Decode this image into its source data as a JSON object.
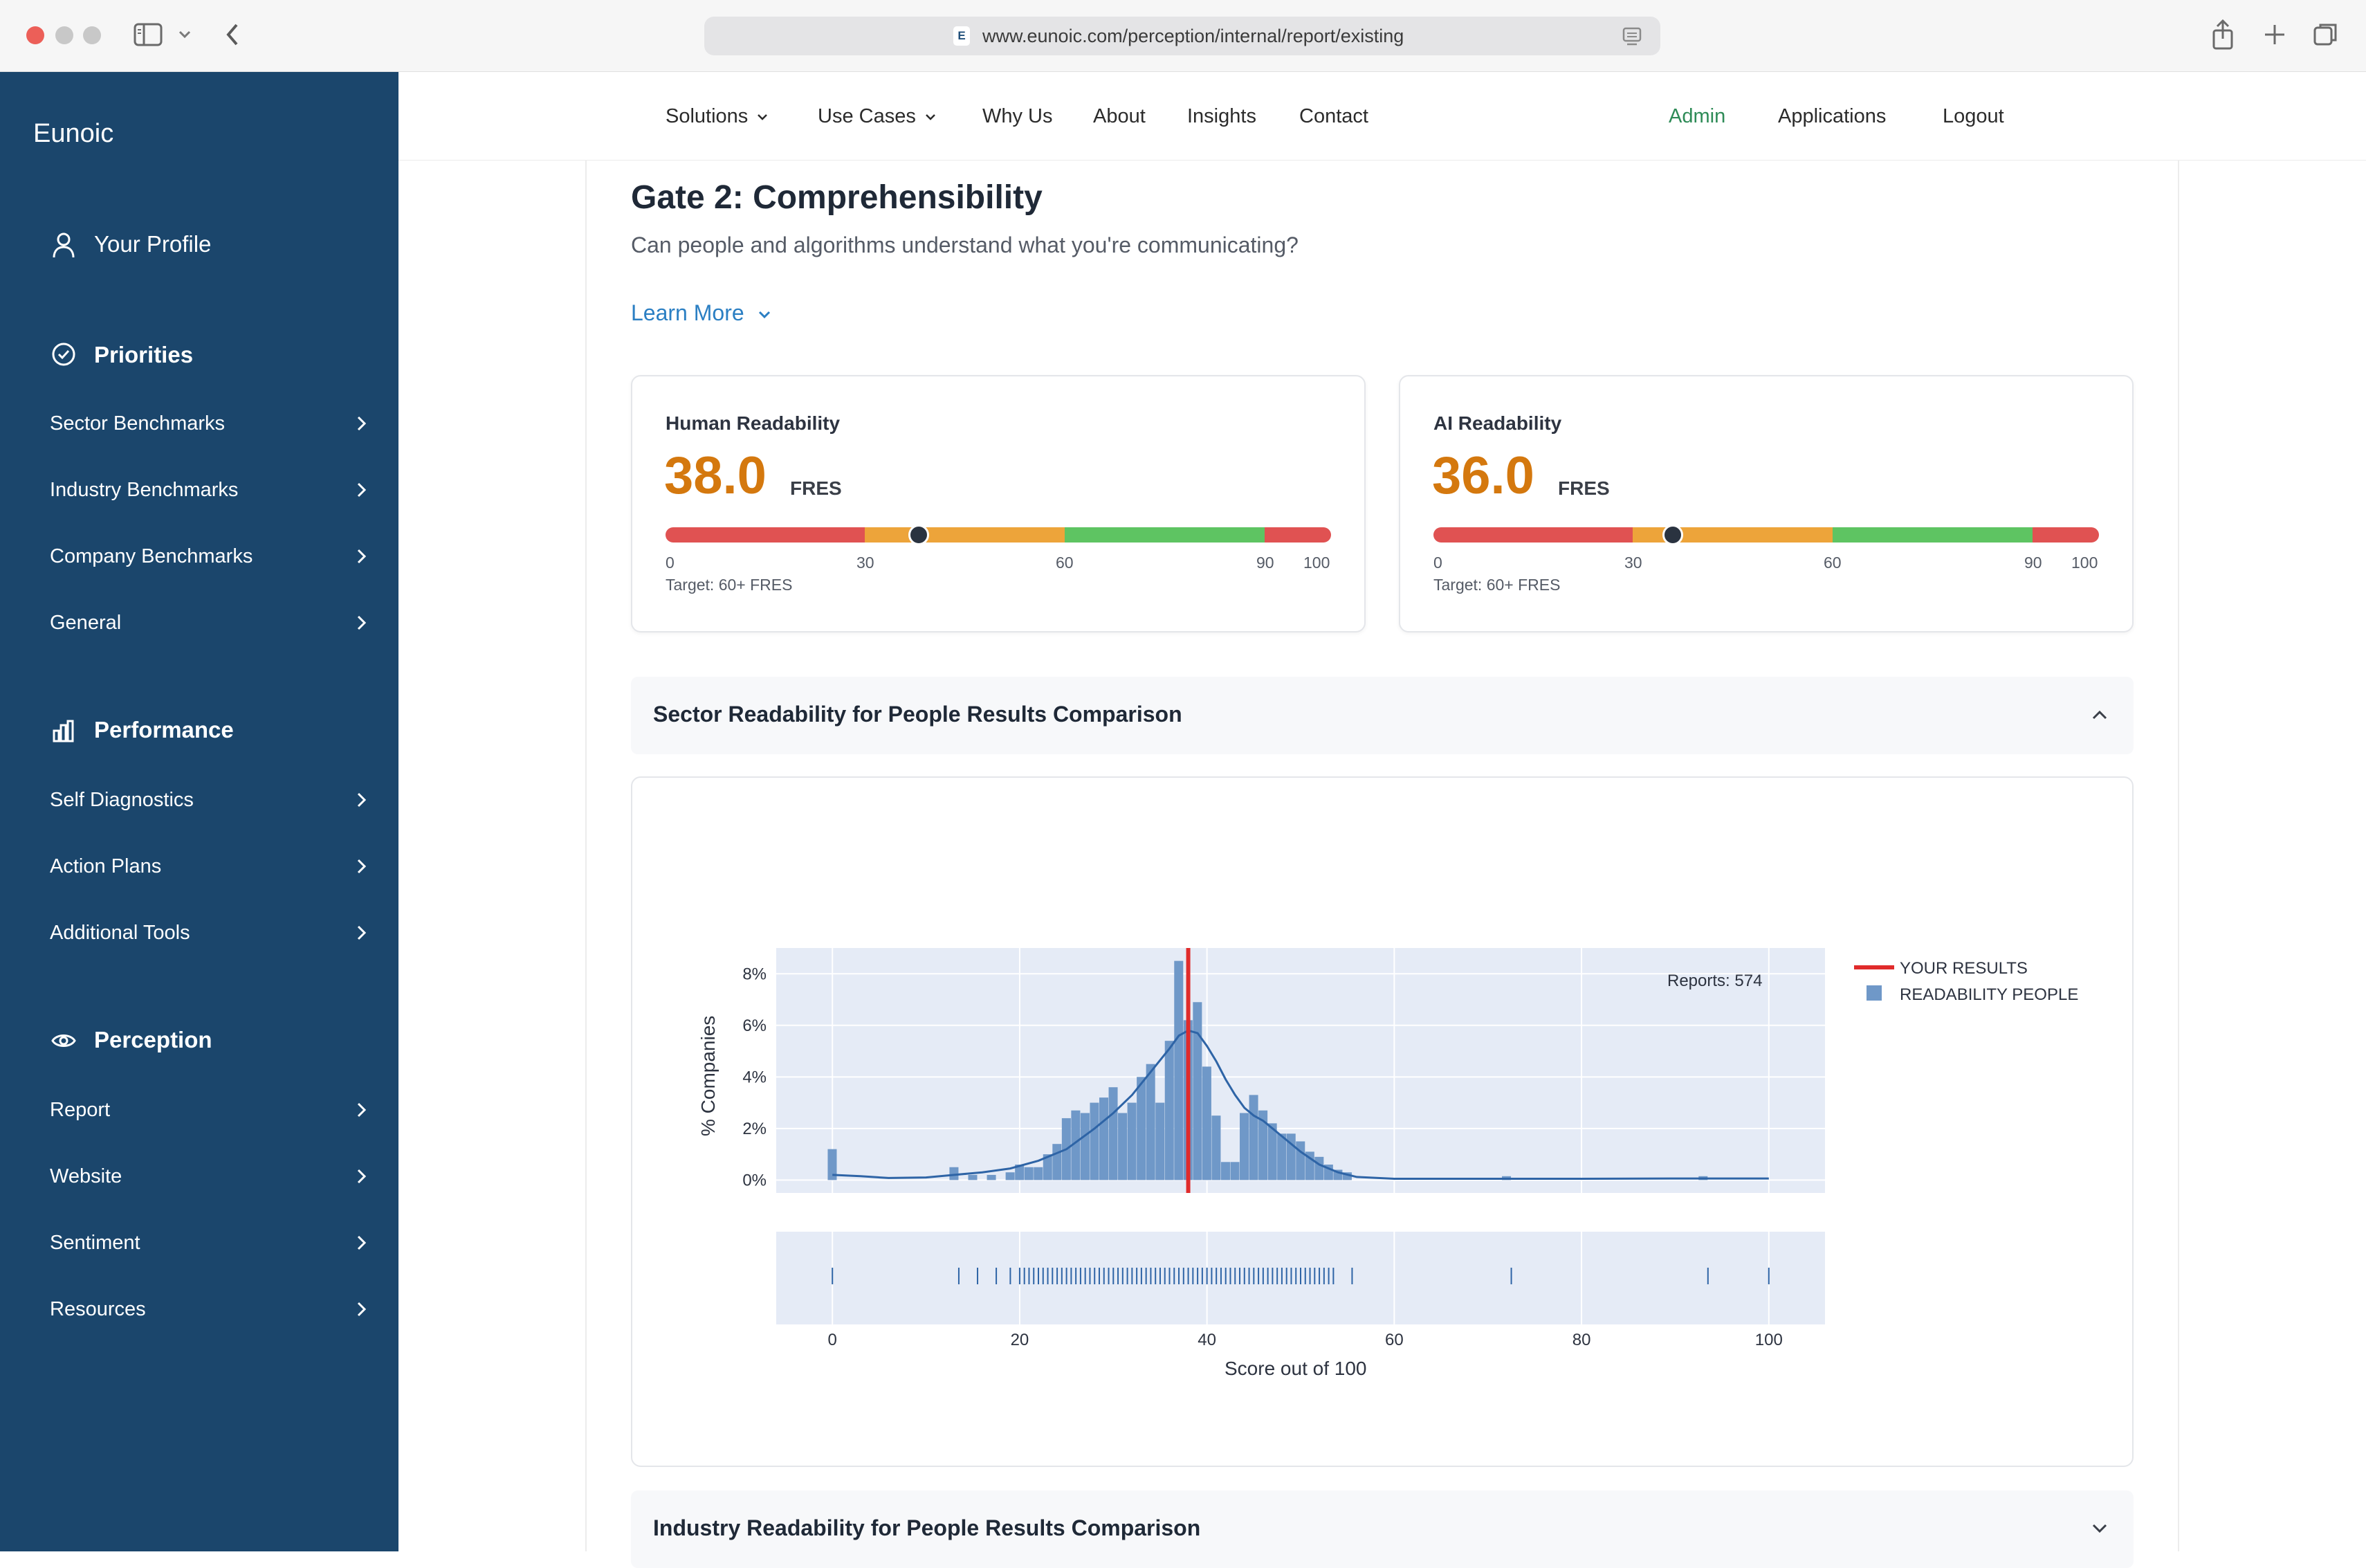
{
  "browser": {
    "url": "www.eunoic.com/perception/internal/report/existing",
    "favicon_letter": "E"
  },
  "brand": "Eunoic",
  "sidebar": {
    "profile_label": "Your Profile",
    "sections": [
      {
        "title": "Priorities",
        "icon": "check-circle-icon",
        "items": [
          "Sector Benchmarks",
          "Industry Benchmarks",
          "Company Benchmarks",
          "General"
        ]
      },
      {
        "title": "Performance",
        "icon": "bar-chart-icon",
        "items": [
          "Self Diagnostics",
          "Action Plans",
          "Additional Tools"
        ]
      },
      {
        "title": "Perception",
        "icon": "eye-icon",
        "items": [
          "Report",
          "Website",
          "Sentiment",
          "Resources"
        ]
      }
    ]
  },
  "nav": {
    "links": [
      "Solutions",
      "Use Cases",
      "Why Us",
      "About",
      "Insights",
      "Contact"
    ],
    "admin": "Admin",
    "applications": "Applications",
    "logout": "Logout"
  },
  "gate": {
    "title": "Gate 2: Comprehensibility",
    "subtitle": "Can people and algorithms understand what you're communicating?",
    "learn_more": "Learn More"
  },
  "cards": [
    {
      "title": "Human Readability",
      "score": "38.0",
      "unit": "FRES",
      "value": 38,
      "target": "Target: 60+ FRES"
    },
    {
      "title": "AI Readability",
      "score": "36.0",
      "unit": "FRES",
      "value": 36,
      "target": "Target: 60+ FRES"
    }
  ],
  "gauge": {
    "ticks": [
      "0",
      "30",
      "60",
      "90",
      "100"
    ],
    "colors": {
      "poor": "#e05252",
      "fair": "#eda43a",
      "good": "#5ec462"
    }
  },
  "accordions": {
    "sector": "Sector Readability for People Results Comparison",
    "industry": "Industry Readability for People Results Comparison"
  },
  "chart_data": {
    "type": "bar",
    "ylabel": "% Companies",
    "xlabel": "Score out of 100",
    "yticks": [
      "0%",
      "2%",
      "4%",
      "6%",
      "8%"
    ],
    "xticks": [
      "0",
      "20",
      "40",
      "60",
      "80",
      "100"
    ],
    "xlim": [
      -6,
      106
    ],
    "ylim": [
      -0.5,
      9.0
    ],
    "annotation": "Reports: 574",
    "your_result": 38,
    "legend": [
      "YOUR RESULTS",
      "READABILITY PEOPLE"
    ],
    "colors": {
      "bars": "#6f98c8",
      "line": "#2e64a6",
      "marker": "#e02b2b",
      "plot_bg": "#e5ebf6"
    },
    "bins": [
      [
        0,
        1.2
      ],
      [
        13,
        0.5
      ],
      [
        15,
        0.2
      ],
      [
        17,
        0.2
      ],
      [
        19,
        0.3
      ],
      [
        20,
        0.6
      ],
      [
        21,
        0.5
      ],
      [
        22,
        0.5
      ],
      [
        23,
        1.0
      ],
      [
        24,
        1.4
      ],
      [
        25,
        2.4
      ],
      [
        26,
        2.7
      ],
      [
        27,
        2.6
      ],
      [
        28,
        3.0
      ],
      [
        29,
        3.2
      ],
      [
        30,
        3.6
      ],
      [
        31,
        2.6
      ],
      [
        32,
        3.0
      ],
      [
        33,
        4.0
      ],
      [
        34,
        4.5
      ],
      [
        35,
        3.0
      ],
      [
        36,
        5.4
      ],
      [
        37,
        8.5
      ],
      [
        38,
        6.2
      ],
      [
        39,
        6.9
      ],
      [
        40,
        4.4
      ],
      [
        41,
        2.5
      ],
      [
        42,
        0.7
      ],
      [
        43,
        0.7
      ],
      [
        44,
        2.6
      ],
      [
        45,
        3.3
      ],
      [
        46,
        2.7
      ],
      [
        47,
        2.2
      ],
      [
        48,
        1.8
      ],
      [
        49,
        1.8
      ],
      [
        50,
        1.5
      ],
      [
        51,
        1.1
      ],
      [
        52,
        0.9
      ],
      [
        53,
        0.6
      ],
      [
        54,
        0.4
      ],
      [
        55,
        0.3
      ],
      [
        72,
        0.15
      ],
      [
        93,
        0.15
      ]
    ],
    "kde": [
      [
        0,
        0.2
      ],
      [
        3,
        0.15
      ],
      [
        6,
        0.08
      ],
      [
        10,
        0.1
      ],
      [
        13,
        0.2
      ],
      [
        16,
        0.3
      ],
      [
        19,
        0.45
      ],
      [
        22,
        0.75
      ],
      [
        25,
        1.2
      ],
      [
        28,
        2.0
      ],
      [
        30,
        2.6
      ],
      [
        32,
        3.3
      ],
      [
        34,
        4.2
      ],
      [
        36,
        5.1
      ],
      [
        37,
        5.6
      ],
      [
        38,
        5.8
      ],
      [
        39,
        5.7
      ],
      [
        40,
        5.2
      ],
      [
        41,
        4.6
      ],
      [
        42,
        3.9
      ],
      [
        43,
        3.3
      ],
      [
        44,
        2.8
      ],
      [
        45,
        2.5
      ],
      [
        46,
        2.3
      ],
      [
        47,
        2.0
      ],
      [
        48,
        1.7
      ],
      [
        50,
        1.1
      ],
      [
        52,
        0.6
      ],
      [
        54,
        0.3
      ],
      [
        56,
        0.12
      ],
      [
        60,
        0.05
      ],
      [
        70,
        0.05
      ],
      [
        80,
        0.05
      ],
      [
        90,
        0.06
      ],
      [
        100,
        0.06
      ]
    ],
    "rug": [
      0,
      13.5,
      15.5,
      17.5,
      19,
      20,
      20.5,
      21,
      21.5,
      22,
      22.5,
      23,
      23.5,
      24,
      24.5,
      25,
      25.5,
      26,
      26.5,
      27,
      27.5,
      28,
      28.5,
      29,
      29.5,
      30,
      30.5,
      31,
      31.5,
      32,
      32.5,
      33,
      33.5,
      34,
      34.5,
      35,
      35.5,
      36,
      36.5,
      37,
      37.5,
      38,
      38.5,
      39,
      39.5,
      40,
      40.5,
      41,
      41.5,
      42,
      42.5,
      43,
      43.5,
      44,
      44.5,
      45,
      45.5,
      46,
      46.5,
      47,
      47.5,
      48,
      48.5,
      49,
      49.5,
      50,
      50.5,
      51,
      51.5,
      52,
      52.5,
      53,
      53.5,
      55.5,
      72.5,
      93.5,
      100
    ]
  }
}
